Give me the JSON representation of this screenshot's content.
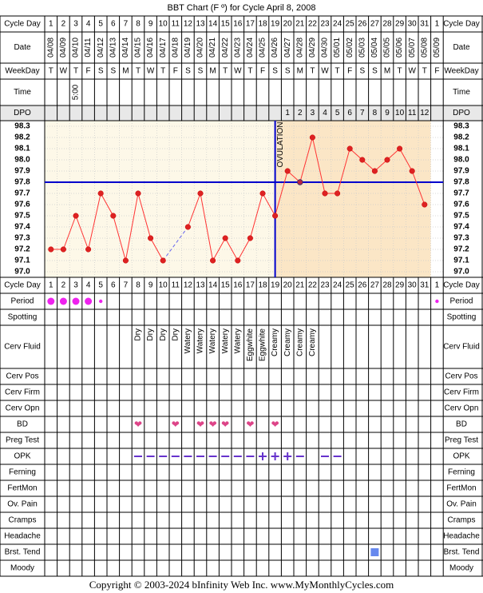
{
  "title": "BBT Chart (F º) for Cycle April 8, 2008",
  "footer": "Copyright © 2003-2024 bInfinity Web Inc.    www.MyMonthlyCycles.com",
  "row_labels": {
    "cycle_day": "Cycle Day",
    "date": "Date",
    "weekday": "WeekDay",
    "time": "Time",
    "dpo": "DPO",
    "period": "Period",
    "spotting": "Spotting",
    "cerv_fluid": "Cerv Fluid",
    "cerv_pos": "Cerv Pos",
    "cerv_firm": "Cerv Firm",
    "cerv_opn": "Cerv Opn",
    "bd": "BD",
    "preg_test": "Preg Test",
    "opk": "OPK",
    "ferning": "Ferning",
    "fertmon": "FertMon",
    "ov_pain": "Ov. Pain",
    "cramps": "Cramps",
    "headache": "Headache",
    "brst_tend": "Brst. Tend",
    "moody": "Moody"
  },
  "colors": {
    "grid_bg_pre": "#fdf8e8",
    "grid_bg_post": "#fbe6c6",
    "line": "#ff3333",
    "marker": "#dd2222",
    "coverline": "#0000cc",
    "period_dot": "#ee22ee",
    "heart": "#dd4488",
    "opk": "#6633cc",
    "brst": "#6688ee"
  },
  "days": [
    {
      "cd": "1",
      "date": "04/08",
      "wd": "T",
      "time": "",
      "dpo": ""
    },
    {
      "cd": "2",
      "date": "04/09",
      "wd": "W",
      "time": "",
      "dpo": ""
    },
    {
      "cd": "3",
      "date": "04/10",
      "wd": "T",
      "time": "5:00",
      "dpo": ""
    },
    {
      "cd": "4",
      "date": "04/11",
      "wd": "F",
      "time": "",
      "dpo": ""
    },
    {
      "cd": "5",
      "date": "04/12",
      "wd": "S",
      "time": "",
      "dpo": ""
    },
    {
      "cd": "6",
      "date": "04/13",
      "wd": "S",
      "time": "",
      "dpo": ""
    },
    {
      "cd": "7",
      "date": "04/14",
      "wd": "M",
      "time": "",
      "dpo": ""
    },
    {
      "cd": "8",
      "date": "04/15",
      "wd": "T",
      "time": "",
      "dpo": ""
    },
    {
      "cd": "9",
      "date": "04/16",
      "wd": "W",
      "time": "",
      "dpo": ""
    },
    {
      "cd": "10",
      "date": "04/17",
      "wd": "T",
      "time": "",
      "dpo": ""
    },
    {
      "cd": "11",
      "date": "04/18",
      "wd": "F",
      "time": "",
      "dpo": ""
    },
    {
      "cd": "12",
      "date": "04/19",
      "wd": "S",
      "time": "",
      "dpo": ""
    },
    {
      "cd": "13",
      "date": "04/20",
      "wd": "S",
      "time": "",
      "dpo": ""
    },
    {
      "cd": "14",
      "date": "04/21",
      "wd": "M",
      "time": "",
      "dpo": ""
    },
    {
      "cd": "15",
      "date": "04/22",
      "wd": "T",
      "time": "",
      "dpo": ""
    },
    {
      "cd": "16",
      "date": "04/23",
      "wd": "W",
      "time": "",
      "dpo": ""
    },
    {
      "cd": "17",
      "date": "04/24",
      "wd": "T",
      "time": "",
      "dpo": ""
    },
    {
      "cd": "18",
      "date": "04/25",
      "wd": "F",
      "time": "",
      "dpo": ""
    },
    {
      "cd": "19",
      "date": "04/26",
      "wd": "S",
      "time": "",
      "dpo": ""
    },
    {
      "cd": "20",
      "date": "04/27",
      "wd": "S",
      "time": "",
      "dpo": "1"
    },
    {
      "cd": "21",
      "date": "04/28",
      "wd": "M",
      "time": "",
      "dpo": "2"
    },
    {
      "cd": "22",
      "date": "04/29",
      "wd": "T",
      "time": "",
      "dpo": "3"
    },
    {
      "cd": "23",
      "date": "04/30",
      "wd": "W",
      "time": "",
      "dpo": "4"
    },
    {
      "cd": "24",
      "date": "05/01",
      "wd": "T",
      "time": "",
      "dpo": "5"
    },
    {
      "cd": "25",
      "date": "05/02",
      "wd": "F",
      "time": "",
      "dpo": "6"
    },
    {
      "cd": "26",
      "date": "05/03",
      "wd": "S",
      "time": "",
      "dpo": "7"
    },
    {
      "cd": "27",
      "date": "05/04",
      "wd": "S",
      "time": "",
      "dpo": "8"
    },
    {
      "cd": "28",
      "date": "05/05",
      "wd": "M",
      "time": "",
      "dpo": "9"
    },
    {
      "cd": "29",
      "date": "05/06",
      "wd": "T",
      "time": "",
      "dpo": "10"
    },
    {
      "cd": "30",
      "date": "05/07",
      "wd": "W",
      "time": "",
      "dpo": "11"
    },
    {
      "cd": "31",
      "date": "05/08",
      "wd": "T",
      "time": "",
      "dpo": "12"
    },
    {
      "cd": "1",
      "date": "05/09",
      "wd": "F",
      "time": "",
      "dpo": ""
    }
  ],
  "chart_data": {
    "type": "line",
    "title": "BBT Chart (F º) for Cycle April 8, 2008",
    "y_ticks": [
      "98.3",
      "98.2",
      "98.1",
      "98.0",
      "97.9",
      "97.8",
      "97.7",
      "97.6",
      "97.5",
      "97.4",
      "97.3",
      "97.2",
      "97.1",
      "97.0"
    ],
    "ylim": [
      97.0,
      98.3
    ],
    "x": [
      1,
      2,
      3,
      4,
      5,
      6,
      7,
      8,
      9,
      10,
      11,
      12,
      13,
      14,
      15,
      16,
      17,
      18,
      19,
      20,
      21,
      22,
      23,
      24,
      25,
      26,
      27,
      28,
      29,
      30,
      31
    ],
    "temps": [
      97.2,
      97.2,
      97.5,
      97.2,
      97.7,
      97.5,
      97.1,
      97.7,
      97.3,
      97.1,
      null,
      97.4,
      97.7,
      97.1,
      97.3,
      97.1,
      97.3,
      97.7,
      97.5,
      97.9,
      97.8,
      98.2,
      97.7,
      97.7,
      98.1,
      98.0,
      97.9,
      98.0,
      98.1,
      97.9,
      97.6
    ],
    "gap_bridge": [
      10,
      12
    ],
    "coverline": 97.8,
    "ovulation_day": 19,
    "ovulation_label": "OVULATION",
    "grid": true
  },
  "period": [
    "large",
    "large",
    "large",
    "large",
    "small",
    "",
    "",
    "",
    "",
    "",
    "",
    "",
    "",
    "",
    "",
    "",
    "",
    "",
    "",
    "",
    "",
    "",
    "",
    "",
    "",
    "",
    "",
    "",
    "",
    "",
    "",
    "small"
  ],
  "cerv_fluid": [
    "",
    "",
    "",
    "",
    "",
    "",
    "",
    "Dry",
    "Dry",
    "Dry",
    "Dry",
    "Watery",
    "Watery",
    "Watery",
    "Watery",
    "Watery",
    "Eggwhite",
    "Eggwhite",
    "Creamy",
    "Creamy",
    "Creamy",
    "Creamy",
    "",
    "",
    "",
    "",
    "",
    "",
    "",
    "",
    "",
    ""
  ],
  "bd": [
    8,
    11,
    13,
    14,
    15,
    17,
    19
  ],
  "bd_symbol": "❤",
  "opk": [
    "",
    "",
    "",
    "",
    "",
    "",
    "",
    "-",
    "-",
    "-",
    "-",
    "-",
    "-",
    "-",
    "-",
    "-",
    "-",
    "+",
    "+",
    "+",
    "-",
    "",
    "-",
    "-",
    "",
    "",
    "",
    "",
    "",
    "",
    "",
    ""
  ],
  "brst_tend": [
    27
  ]
}
